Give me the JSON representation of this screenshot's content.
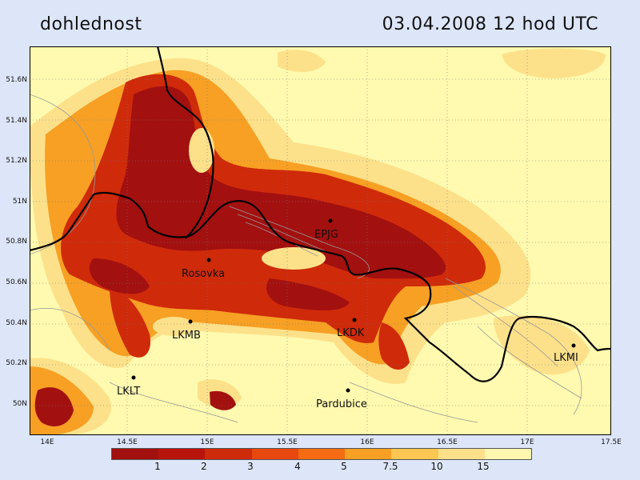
{
  "header": {
    "title": "dohlednost",
    "datetime": "03.04.2008   12 hod UTC"
  },
  "axes": {
    "lon_labels": [
      "14E",
      "14.5E",
      "15E",
      "15.5E",
      "16E",
      "16.5E",
      "17E",
      "17.5E"
    ],
    "lat_labels": [
      "51.6N",
      "51.4N",
      "51.2N",
      "51N",
      "50.8N",
      "50.6N",
      "50.4N",
      "50.2N",
      "50N"
    ]
  },
  "stations": [
    {
      "id": "EPJG",
      "label": "EPJG"
    },
    {
      "id": "rosovka",
      "label": "Rosovka"
    },
    {
      "id": "LKMB",
      "label": "LKMB"
    },
    {
      "id": "LKDK",
      "label": "LKDK"
    },
    {
      "id": "LKLT",
      "label": "LKLT"
    },
    {
      "id": "pardubice",
      "label": "Pardubice"
    },
    {
      "id": "LKMI",
      "label": "LKMI"
    }
  ],
  "legend": {
    "labels": [
      "1",
      "2",
      "3",
      "4",
      "5",
      "7.5",
      "10",
      "15"
    ],
    "colors": [
      "#a31010",
      "#b8140c",
      "#cf2a0a",
      "#e8480e",
      "#f56c12",
      "#f7a024",
      "#fbc652",
      "#fde18a",
      "#fff7b0"
    ]
  },
  "colors": {
    "background": "#fffaaf",
    "frame": "#dde6f8",
    "border_line": "#000000",
    "contour": "#999999"
  }
}
